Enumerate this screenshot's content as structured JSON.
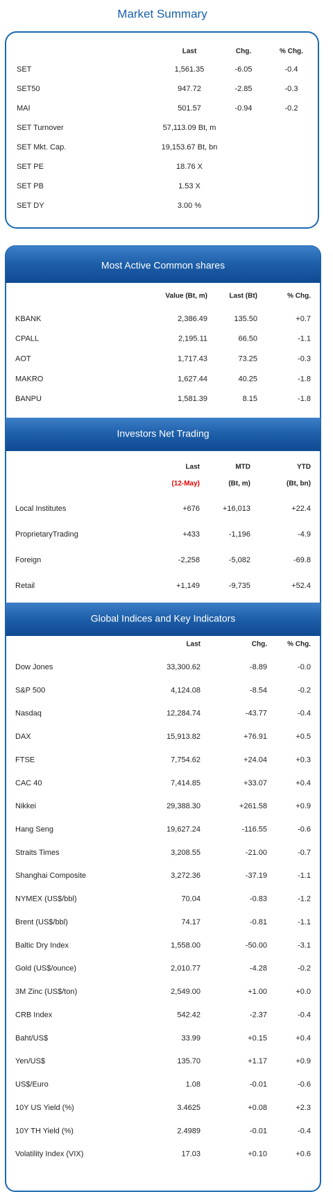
{
  "market_summary": {
    "title": "Market Summary",
    "headers": [
      "Last",
      "Chg.",
      "% Chg."
    ],
    "rows": [
      [
        "SET",
        "1,561.35",
        "-6.05",
        "-0.4"
      ],
      [
        "SET50",
        "947.72",
        "-2.85",
        "-0.3"
      ],
      [
        "MAI",
        "501.57",
        "-0.94",
        "-0.2"
      ],
      [
        "SET Turnover",
        "57,113.09 Bt, m"
      ],
      [
        "SET Mkt. Cap.",
        "19,153.67 Bt, bn"
      ],
      [
        "SET PE",
        "18.76 X"
      ],
      [
        "SET PB",
        "1.53 X"
      ],
      [
        "SET DY",
        "3.00 %"
      ]
    ]
  },
  "most_active": {
    "title": "Most Active Common shares",
    "headers": [
      "Value (Bt, m)",
      "Last (Bt)",
      "% Chg."
    ],
    "rows": [
      [
        "KBANK",
        "2,386.49",
        "135.50",
        "+0.7"
      ],
      [
        "CPALL",
        "2,195.11",
        "66.50",
        "-1.1"
      ],
      [
        "AOT",
        "1,717.43",
        "73.25",
        "-0.3"
      ],
      [
        "MAKRO",
        "1,627.44",
        "40.25",
        "-1.8"
      ],
      [
        "BANPU",
        "1,581.39",
        "8.15",
        "-1.8"
      ]
    ]
  },
  "investors": {
    "title": "Investors Net Trading",
    "headers": [
      "Last",
      "MTD",
      "YTD"
    ],
    "subheaders": [
      "(12-May)",
      "(Bt, m)",
      "(Bt, bn)"
    ],
    "rows": [
      [
        "Local Institutes",
        "+676",
        "+16,013",
        "+22.4"
      ],
      [
        "ProprietaryTrading",
        "+433",
        "-1,196",
        "-4.9"
      ],
      [
        "Foreign",
        "-2,258",
        "-5,082",
        "-69.8"
      ],
      [
        "Retail",
        "+1,149",
        "-9,735",
        "+52.4"
      ]
    ]
  },
  "global": {
    "title": "Global Indices and Key Indicators",
    "headers": [
      "Last",
      "Chg.",
      "% Chg."
    ],
    "rows": [
      [
        "Dow Jones",
        "33,300.62",
        "-8.89",
        "-0.0"
      ],
      [
        "S&P 500",
        "4,124.08",
        "-8.54",
        "-0.2"
      ],
      [
        "Nasdaq",
        "12,284.74",
        "-43.77",
        "-0.4"
      ],
      [
        "DAX",
        "15,913.82",
        "+76.91",
        "+0.5"
      ],
      [
        "FTSE",
        "7,754.62",
        "+24.04",
        "+0.3"
      ],
      [
        "CAC 40",
        "7,414.85",
        "+33.07",
        "+0.4"
      ],
      [
        "Nikkei",
        "29,388.30",
        "+261.58",
        "+0.9"
      ],
      [
        "Hang Seng",
        "19,627.24",
        "-116.55",
        "-0.6"
      ],
      [
        "Straits Times",
        "3,208.55",
        "-21.00",
        "-0.7"
      ],
      [
        "Shanghai Composite",
        "3,272.36",
        "-37.19",
        "-1.1"
      ],
      [
        "NYMEX (US$/bbl)",
        "70.04",
        "-0.83",
        "-1.2"
      ],
      [
        "Brent (US$/bbl)",
        "74.17",
        "-0.81",
        "-1.1"
      ],
      [
        "Baltic Dry Index",
        "1,558.00",
        "-50.00",
        "-3.1"
      ],
      [
        "Gold (US$/ounce)",
        "2,010.77",
        "-4.28",
        "-0.2"
      ],
      [
        "3M Zinc (US$/ton)",
        "2,549.00",
        "+1.00",
        "+0.0"
      ],
      [
        "CRB Index",
        "542.42",
        "-2.37",
        "-0.4"
      ],
      [
        "Baht/US$",
        "33.99",
        "+0.15",
        "+0.4"
      ],
      [
        "Yen/US$",
        "135.70",
        "+1.17",
        "+0.9"
      ],
      [
        "US$/Euro",
        "1.08",
        "-0.01",
        "-0.6"
      ],
      [
        "10Y US Yield (%)",
        "3.4625",
        "+0.08",
        "+2.3"
      ],
      [
        "10Y TH Yield (%)",
        "2.4989",
        "-0.01",
        "-0.4"
      ],
      [
        "Volatility Index (VIX)",
        "17.03",
        "+0.10",
        "+0.6"
      ]
    ]
  }
}
